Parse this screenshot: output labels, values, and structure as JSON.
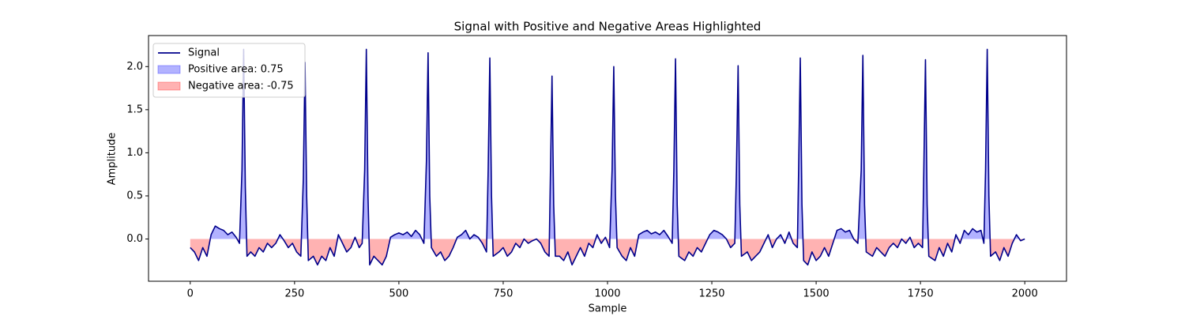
{
  "chart_data": {
    "type": "line",
    "title": "Signal with Positive and Negative Areas Highlighted",
    "xlabel": "Sample",
    "ylabel": "Amplitude",
    "xlim": [
      -100,
      2100
    ],
    "ylim": [
      -0.49,
      2.36
    ],
    "xticks": [
      0,
      250,
      500,
      750,
      1000,
      1250,
      1500,
      1750,
      2000
    ],
    "yticks": [
      {
        "value": 0,
        "label": "0.0"
      },
      {
        "value": 0.5,
        "label": "0.5"
      },
      {
        "value": 1,
        "label": "1.0"
      },
      {
        "value": 1.5,
        "label": "1.5"
      },
      {
        "value": 2,
        "label": "2.0"
      }
    ],
    "legend": "upper left",
    "x": [
      0,
      10,
      20,
      30,
      40,
      50,
      60,
      70,
      80,
      90,
      100,
      110,
      118,
      124,
      128,
      132,
      136,
      145,
      155,
      165,
      175,
      185,
      195,
      205,
      215,
      225,
      235,
      245,
      255,
      265,
      271,
      275,
      279,
      283,
      295,
      305,
      315,
      325,
      335,
      345,
      355,
      365,
      375,
      385,
      395,
      405,
      412,
      418,
      422,
      426,
      430,
      440,
      450,
      460,
      470,
      480,
      490,
      500,
      510,
      520,
      530,
      540,
      550,
      560,
      566,
      570,
      574,
      578,
      590,
      600,
      610,
      620,
      630,
      640,
      650,
      660,
      670,
      680,
      690,
      700,
      710,
      714,
      718,
      722,
      726,
      740,
      750,
      760,
      770,
      780,
      790,
      800,
      810,
      820,
      830,
      840,
      850,
      860,
      863,
      867,
      871,
      875,
      885,
      895,
      905,
      915,
      925,
      935,
      945,
      955,
      965,
      975,
      985,
      995,
      1005,
      1011,
      1015,
      1019,
      1023,
      1035,
      1045,
      1055,
      1065,
      1075,
      1085,
      1095,
      1105,
      1115,
      1125,
      1135,
      1145,
      1155,
      1159,
      1163,
      1167,
      1171,
      1185,
      1195,
      1205,
      1215,
      1225,
      1235,
      1245,
      1255,
      1265,
      1275,
      1285,
      1295,
      1305,
      1309,
      1313,
      1317,
      1321,
      1335,
      1345,
      1355,
      1365,
      1375,
      1385,
      1395,
      1405,
      1415,
      1425,
      1435,
      1445,
      1455,
      1458,
      1462,
      1466,
      1470,
      1480,
      1490,
      1500,
      1510,
      1520,
      1530,
      1540,
      1550,
      1560,
      1570,
      1580,
      1590,
      1600,
      1608,
      1612,
      1616,
      1620,
      1635,
      1645,
      1655,
      1665,
      1675,
      1685,
      1695,
      1705,
      1715,
      1725,
      1735,
      1745,
      1755,
      1758,
      1762,
      1766,
      1770,
      1785,
      1795,
      1805,
      1815,
      1825,
      1835,
      1845,
      1855,
      1865,
      1875,
      1885,
      1895,
      1902,
      1906,
      1910,
      1914,
      1918,
      1930,
      1940,
      1950,
      1960,
      1970,
      1980,
      1990,
      2000
    ],
    "series": [
      {
        "name": "Signal",
        "color": "#00008b",
        "values": [
          -0.1,
          -0.15,
          -0.25,
          -0.1,
          -0.2,
          0.05,
          0.15,
          0.12,
          0.1,
          0.05,
          0.08,
          0.02,
          -0.05,
          0.8,
          2.2,
          0.6,
          -0.2,
          -0.15,
          -0.2,
          -0.1,
          -0.15,
          -0.05,
          -0.1,
          -0.05,
          0.05,
          -0.02,
          -0.1,
          -0.05,
          -0.15,
          -0.2,
          0.7,
          2.05,
          0.5,
          -0.25,
          -0.2,
          -0.3,
          -0.2,
          -0.25,
          -0.1,
          -0.2,
          0.05,
          -0.05,
          -0.15,
          -0.1,
          0.02,
          -0.1,
          -0.05,
          0.8,
          2.2,
          0.5,
          -0.3,
          -0.2,
          -0.25,
          -0.3,
          -0.2,
          0.02,
          0.05,
          0.07,
          0.05,
          0.08,
          0.03,
          0.1,
          0.05,
          -0.05,
          0.9,
          2.16,
          0.5,
          -0.1,
          -0.2,
          -0.15,
          -0.25,
          -0.2,
          -0.1,
          0.02,
          0.05,
          0.1,
          0.0,
          0.05,
          0.02,
          -0.05,
          -0.15,
          0.8,
          2.1,
          0.5,
          -0.2,
          -0.15,
          -0.1,
          -0.2,
          -0.15,
          -0.05,
          -0.1,
          0.0,
          -0.05,
          -0.02,
          0.0,
          -0.05,
          -0.15,
          -0.2,
          0.7,
          1.89,
          0.4,
          -0.2,
          -0.2,
          -0.25,
          -0.15,
          -0.3,
          -0.2,
          -0.1,
          -0.2,
          -0.05,
          -0.1,
          0.05,
          -0.05,
          0.02,
          -0.1,
          0.8,
          2.0,
          0.5,
          -0.1,
          -0.2,
          -0.25,
          -0.1,
          -0.2,
          0.05,
          0.08,
          0.1,
          0.06,
          0.08,
          0.05,
          0.1,
          0.03,
          -0.05,
          0.8,
          2.09,
          0.4,
          -0.2,
          -0.25,
          -0.15,
          -0.2,
          -0.1,
          -0.15,
          -0.05,
          0.05,
          0.1,
          0.08,
          0.05,
          0.0,
          -0.1,
          -0.05,
          0.8,
          2.01,
          0.4,
          -0.2,
          -0.15,
          -0.25,
          -0.2,
          -0.15,
          -0.05,
          0.05,
          -0.1,
          0.0,
          0.05,
          -0.05,
          0.08,
          -0.05,
          -0.1,
          0.8,
          2.1,
          0.4,
          -0.25,
          -0.3,
          -0.15,
          -0.25,
          -0.2,
          -0.1,
          -0.2,
          -0.05,
          0.1,
          0.12,
          0.08,
          0.1,
          0.0,
          -0.05,
          0.8,
          2.13,
          0.4,
          -0.15,
          -0.2,
          -0.1,
          -0.15,
          -0.2,
          -0.1,
          -0.05,
          -0.1,
          0.0,
          -0.05,
          0.02,
          -0.1,
          -0.05,
          -0.1,
          0.8,
          2.08,
          0.4,
          -0.2,
          -0.25,
          -0.1,
          -0.2,
          -0.05,
          -0.15,
          0.05,
          -0.05,
          0.1,
          0.05,
          0.12,
          0.08,
          0.1,
          -0.05,
          0.8,
          2.2,
          0.5,
          -0.2,
          -0.15,
          -0.25,
          -0.1,
          -0.2,
          -0.05,
          0.05,
          -0.02,
          0.0
        ]
      }
    ],
    "fills": [
      {
        "name": "Positive area: 0.75",
        "color": "#0000ff",
        "side": "positive"
      },
      {
        "name": "Negative area: -0.75",
        "color": "#ff0000",
        "side": "negative"
      }
    ]
  }
}
